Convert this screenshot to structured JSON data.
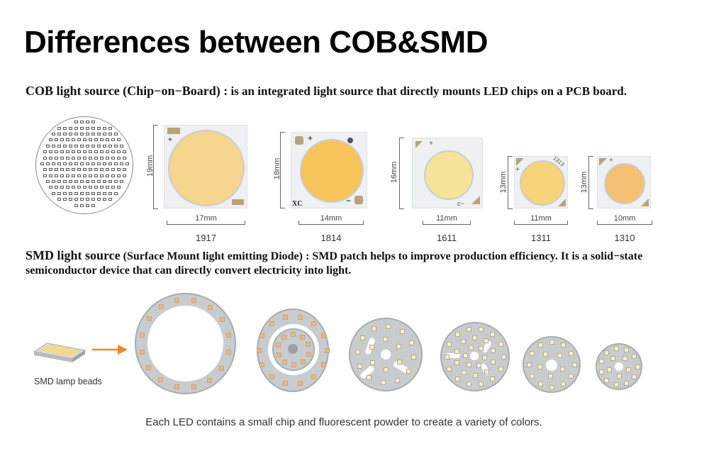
{
  "page": {
    "title": "Differences between COB&SMD"
  },
  "cob": {
    "heading": "COB light source (Chip−on−Board) :",
    "description": " is an integrated light source that directly mounts LED chips on a PCB board.",
    "chips": [
      {
        "model": "1917",
        "height": "19mm",
        "width": "17mm",
        "led_color": "#f6d58e"
      },
      {
        "model": "1814",
        "height": "18mm",
        "width": "14mm",
        "led_color": "#f7c45c",
        "brand_mark": "XC"
      },
      {
        "model": "1611",
        "height": "16mm",
        "width": "11mm",
        "led_color": "#f6e39a"
      },
      {
        "model": "1311",
        "height": "13mm",
        "width": "11mm",
        "led_color": "#f7d379"
      },
      {
        "model": "1310",
        "height": "13mm",
        "width": "10mm",
        "led_color": "#f4c073"
      }
    ],
    "chip_markings": {
      "plus": "+",
      "minus": "−",
      "code_1311": "1313",
      "c_minus": "c−"
    }
  },
  "smd": {
    "heading": "SMD light source",
    "heading_paren": " (Surface Mount light emitting Diode) :",
    "description": " SMD patch helps to improve production efficiency. It is a solid−state semiconductor device that can directly convert electricity into light.",
    "bead_label": "SMD lamp beads",
    "arrow_color": "#f0891f",
    "boards": [
      {
        "type": "ring-module"
      },
      {
        "type": "driver-on-board-module"
      },
      {
        "type": "round-board-slotted"
      },
      {
        "type": "round-board-dense"
      },
      {
        "type": "round-board-5730"
      },
      {
        "type": "round-board-small"
      }
    ],
    "caption": "Each LED contains a small chip and fluorescent powder to create a variety of colors."
  }
}
